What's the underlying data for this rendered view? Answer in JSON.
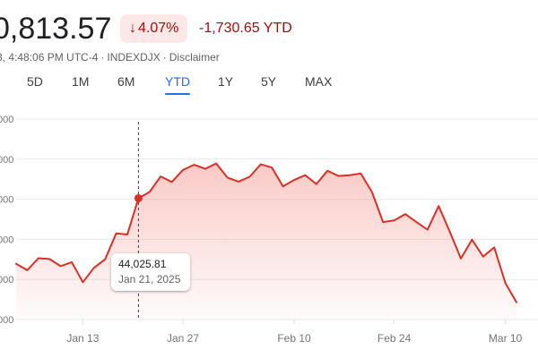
{
  "quote": {
    "price": "0,813.57",
    "change_arrow": "↓",
    "change_percent": "4.07%",
    "change_ytd": "-1,730.65 YTD",
    "timestamp": "3, 4:48:06 PM UTC-4",
    "separator": "·",
    "index": "INDEXDJX",
    "disclaimer": "Disclaimer"
  },
  "colors": {
    "negative": "#a50e0e",
    "negative_bg": "#fce8e6",
    "line": "#d93025",
    "active_tab": "#1a73e8"
  },
  "range_tabs": {
    "items": [
      "5D",
      "1M",
      "6M",
      "YTD",
      "1Y",
      "5Y",
      "MAX"
    ],
    "active": "YTD"
  },
  "tooltip": {
    "value": "44,025.81",
    "date": "Jan 21, 2025"
  },
  "chart_data": {
    "type": "area",
    "title": "",
    "xlabel": "",
    "ylabel": "",
    "x_tick_labels": [
      "Jan 13",
      "Jan 27",
      "Feb 10",
      "Feb 24",
      "Mar 10"
    ],
    "ylim": [
      41000,
      46000
    ],
    "y_ticks": [
      41000,
      42000,
      43000,
      44000,
      45000,
      46000
    ],
    "y_tick_labels": [
      "000",
      "000",
      "000",
      "000",
      "000",
      "000"
    ],
    "grid": true,
    "legend": "none",
    "x": [
      "Jan 2",
      "Jan 3",
      "Jan 6",
      "Jan 7",
      "Jan 8",
      "Jan 10",
      "Jan 13",
      "Jan 14",
      "Jan 15",
      "Jan 16",
      "Jan 17",
      "Jan 21",
      "Jan 22",
      "Jan 23",
      "Jan 24",
      "Jan 27",
      "Jan 28",
      "Jan 29",
      "Jan 30",
      "Jan 31",
      "Feb 3",
      "Feb 4",
      "Feb 5",
      "Feb 6",
      "Feb 7",
      "Feb 10",
      "Feb 11",
      "Feb 12",
      "Feb 13",
      "Feb 14",
      "Feb 18",
      "Feb 19",
      "Feb 20",
      "Feb 21",
      "Feb 24",
      "Feb 25",
      "Feb 26",
      "Feb 27",
      "Feb 28",
      "Mar 3",
      "Mar 4",
      "Mar 5",
      "Mar 6",
      "Mar 7",
      "Mar 10",
      "Mar 11"
    ],
    "series": [
      {
        "values": [
          42390,
          42230,
          42530,
          42510,
          42330,
          42430,
          41930,
          42290,
          42500,
          43150,
          43120,
          44025,
          44180,
          44570,
          44430,
          44730,
          44860,
          44760,
          44890,
          44540,
          44440,
          44560,
          44870,
          44790,
          44320,
          44480,
          44600,
          44380,
          44710,
          44580,
          44600,
          44640,
          44180,
          43430,
          43470,
          43630,
          43430,
          43240,
          43830,
          43190,
          42520,
          42990,
          42570,
          42800,
          41910,
          41430
        ]
      }
    ]
  }
}
